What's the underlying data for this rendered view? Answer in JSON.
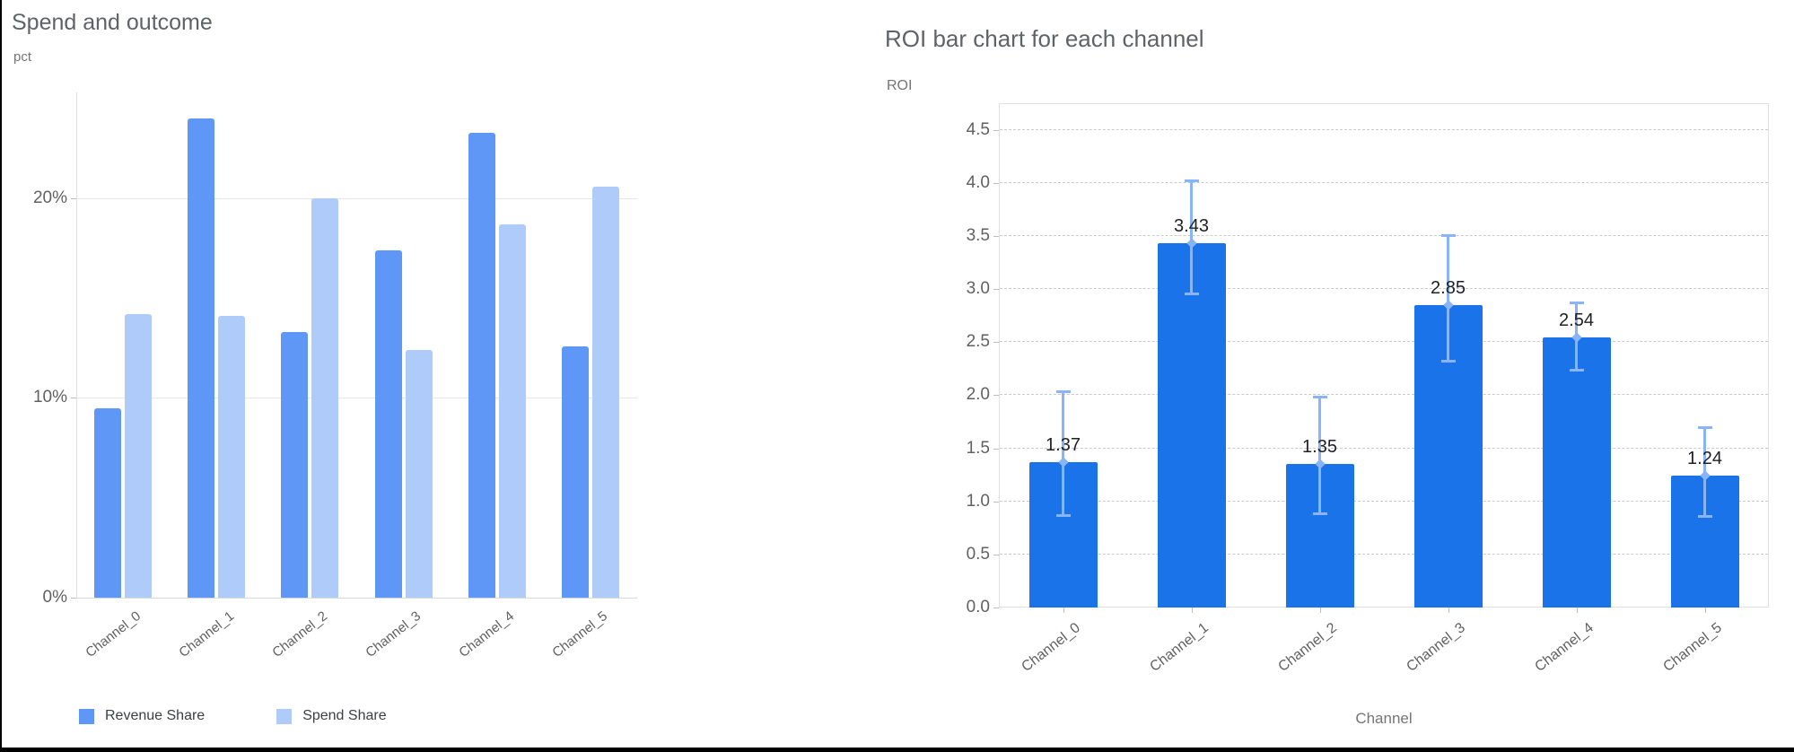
{
  "frame": {
    "border_color": "#000000"
  },
  "chart_data": [
    {
      "type": "bar",
      "title": "Spend and outcome",
      "ylabel": "pct",
      "xlabel": "",
      "categories": [
        "Channel_0",
        "Channel_1",
        "Channel_2",
        "Channel_3",
        "Channel_4",
        "Channel_5"
      ],
      "series": [
        {
          "name": "Revenue Share",
          "color": "#5e97f6",
          "values": [
            9.5,
            24.0,
            13.3,
            17.4,
            23.3,
            12.6
          ]
        },
        {
          "name": "Spend Share",
          "color": "#aecbfa",
          "values": [
            14.2,
            14.1,
            20.0,
            12.4,
            18.7,
            20.6
          ]
        }
      ],
      "y_tick_labels": [
        "0%",
        "10%",
        "20%"
      ],
      "ylim": [
        0,
        25.3
      ],
      "grid": "solid",
      "legend_position": "bottom",
      "legend": [
        {
          "label": "Revenue Share",
          "color": "#5e97f6"
        },
        {
          "label": "Spend Share",
          "color": "#aecbfa"
        }
      ]
    },
    {
      "type": "bar",
      "title": "ROI bar chart for each channel",
      "ylabel": "ROI",
      "xlabel": "Channel",
      "categories": [
        "Channel_0",
        "Channel_1",
        "Channel_2",
        "Channel_3",
        "Channel_4",
        "Channel_5"
      ],
      "values": [
        1.37,
        3.43,
        1.35,
        2.85,
        2.54,
        1.24
      ],
      "value_labels": [
        "1.37",
        "3.43",
        "1.35",
        "2.85",
        "2.54",
        "1.24"
      ],
      "error_low": [
        0.86,
        2.95,
        0.88,
        2.32,
        2.23,
        0.85
      ],
      "error_high": [
        2.04,
        4.02,
        1.99,
        3.51,
        2.87,
        1.7
      ],
      "bar_color": "#1a73e8",
      "error_color": "#8ab4f8",
      "y_tick_labels": [
        "0.0",
        "0.5",
        "1.0",
        "1.5",
        "2.0",
        "2.5",
        "3.0",
        "3.5",
        "4.0",
        "4.5"
      ],
      "ylim": [
        0,
        4.75
      ],
      "grid": "dashed",
      "legend_position": "none"
    }
  ]
}
